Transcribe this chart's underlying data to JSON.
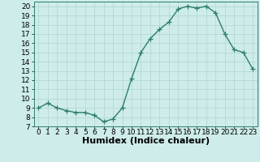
{
  "x": [
    0,
    1,
    2,
    3,
    4,
    5,
    6,
    7,
    8,
    9,
    10,
    11,
    12,
    13,
    14,
    15,
    16,
    17,
    18,
    19,
    20,
    21,
    22,
    23
  ],
  "y": [
    9,
    9.5,
    9,
    8.7,
    8.5,
    8.5,
    8.2,
    7.5,
    7.8,
    9,
    12.2,
    15,
    16.5,
    17.5,
    18.3,
    19.7,
    20.0,
    19.8,
    20.0,
    19.3,
    17.0,
    15.3,
    15.0,
    13.2
  ],
  "line_color": "#2e7d6e",
  "marker": "+",
  "marker_size": 4,
  "bg_color": "#cdecea",
  "grid_color": "#b5d9d6",
  "xlabel": "Humidex (Indice chaleur)",
  "xlim": [
    -0.5,
    23.5
  ],
  "ylim": [
    7,
    20.5
  ],
  "yticks": [
    7,
    8,
    9,
    10,
    11,
    12,
    13,
    14,
    15,
    16,
    17,
    18,
    19,
    20
  ],
  "xticks": [
    0,
    1,
    2,
    3,
    4,
    5,
    6,
    7,
    8,
    9,
    10,
    11,
    12,
    13,
    14,
    15,
    16,
    17,
    18,
    19,
    20,
    21,
    22,
    23
  ],
  "xlabel_fontsize": 8,
  "tick_fontsize": 6.5,
  "line_width": 1.0
}
